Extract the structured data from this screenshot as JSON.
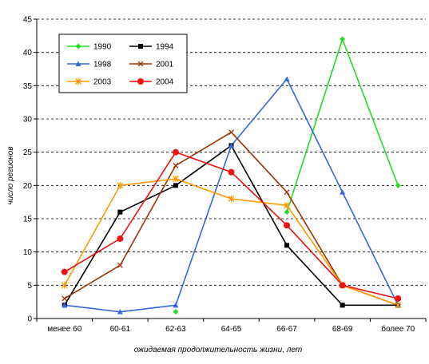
{
  "chart_data": {
    "type": "line",
    "title": "",
    "xlabel": "ожидаемая продолжительность жизни, лет",
    "ylabel": "число регионов",
    "categories": [
      "менее 60",
      "60-61",
      "62-63",
      "64-65",
      "66-67",
      "68-69",
      "более 70"
    ],
    "ylim": [
      0,
      45
    ],
    "yticks": [
      0,
      5,
      10,
      15,
      20,
      25,
      30,
      35,
      40,
      45
    ],
    "grid": "horizontal dashed",
    "legend_placement": "top-left",
    "series": [
      {
        "name": "1990",
        "color": "#22dd22",
        "marker": "diamond",
        "values": [
          null,
          null,
          1,
          null,
          16,
          42,
          20
        ]
      },
      {
        "name": "1994",
        "color": "#000000",
        "marker": "square",
        "values": [
          2,
          16,
          20,
          26,
          11,
          2,
          2
        ]
      },
      {
        "name": "1998",
        "color": "#3366dd",
        "marker": "triangle",
        "values": [
          2,
          1,
          2,
          26,
          36,
          19,
          2
        ]
      },
      {
        "name": "2001",
        "color": "#993300",
        "marker": "x",
        "values": [
          3,
          8,
          23,
          28,
          19,
          5,
          2
        ]
      },
      {
        "name": "2003",
        "color": "#ff9900",
        "marker": "star",
        "values": [
          5,
          20,
          21,
          18,
          17,
          5,
          2
        ]
      },
      {
        "name": "2004",
        "color": "#ee1111",
        "marker": "circle",
        "values": [
          7,
          12,
          25,
          22,
          14,
          5,
          3
        ]
      }
    ],
    "segments_1990": [
      [
        4,
        5
      ],
      [
        5,
        6
      ]
    ]
  }
}
